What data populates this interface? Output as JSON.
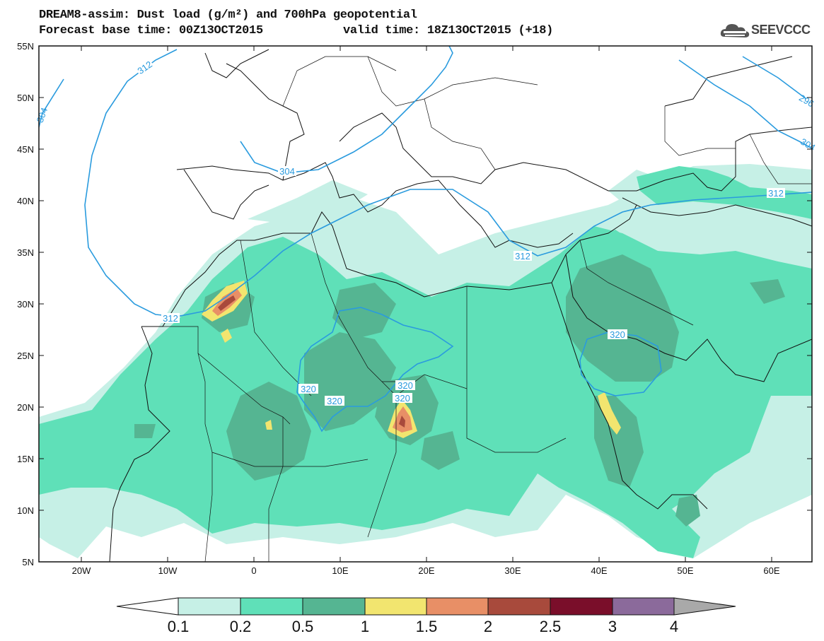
{
  "title": {
    "line1": "DREAM8-assim: Dust load (g/m²) and 700hPa geopotential",
    "line2": "Forecast base time: 00Z13OCT2015",
    "valid": "valid time: 18Z13OCT2015 (+18)"
  },
  "logo": {
    "text": "SEEVCCC",
    "icon": "cloud-icon"
  },
  "axes": {
    "lat_labels": [
      "55N",
      "50N",
      "45N",
      "40N",
      "35N",
      "30N",
      "25N",
      "20N",
      "15N",
      "10N",
      "5N"
    ],
    "lon_labels": [
      "20W",
      "10W",
      "0",
      "10E",
      "20E",
      "30E",
      "40E",
      "50E",
      "60E"
    ]
  },
  "contours": {
    "labels": [
      "312",
      "304",
      "312",
      "312",
      "312",
      "320",
      "320",
      "320",
      "320",
      "320",
      "304",
      "312",
      "296",
      "304"
    ]
  },
  "colorbar": {
    "labels": [
      "0.1",
      "0.2",
      "0.5",
      "1",
      "1.5",
      "2",
      "2.5",
      "3",
      "4"
    ],
    "colors": [
      "#ffffff",
      "#c6f0e6",
      "#5fe0b8",
      "#55b592",
      "#f2e56f",
      "#e88f66",
      "#a84a3c",
      "#7a0e2a",
      "#8b6a9b",
      "#a9a9a9"
    ]
  },
  "palette": {
    "level1": "#c6f0e6",
    "level2": "#5fe0b8",
    "level3": "#55b592",
    "level4": "#f2e56f",
    "level5": "#e88f66",
    "level6": "#a84a3c",
    "contour": "#2a9bde"
  }
}
